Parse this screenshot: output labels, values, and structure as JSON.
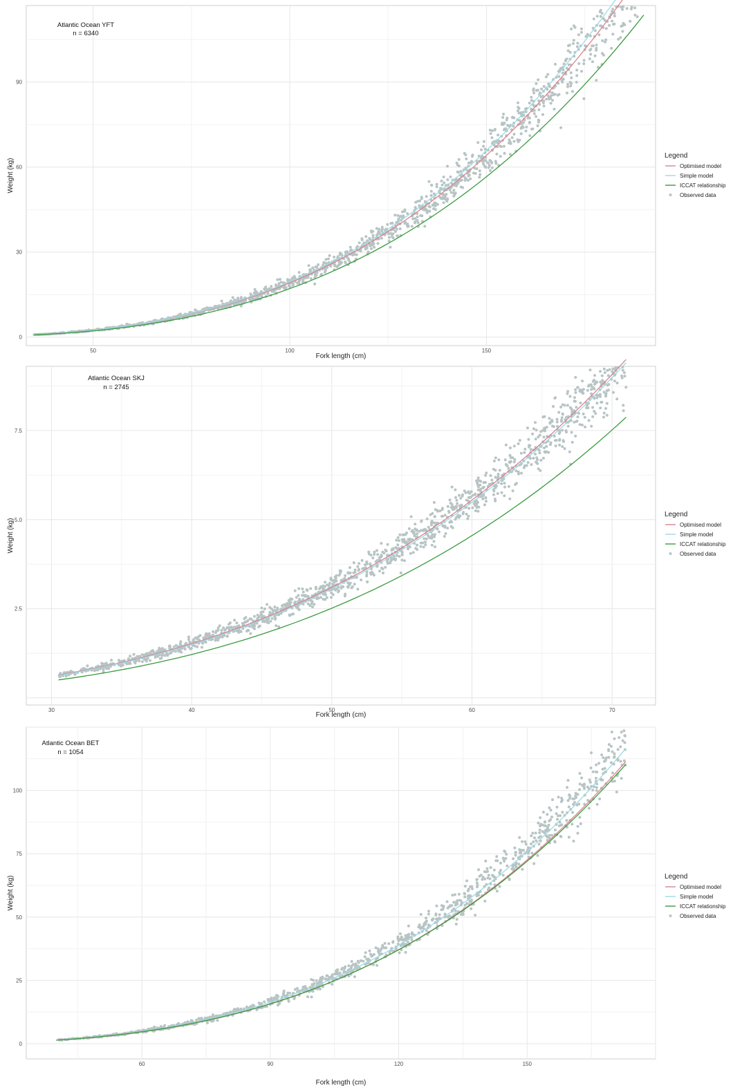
{
  "chart_data": [
    {
      "type": "scatter",
      "title": "Atlantic Ocean YFT",
      "subtitle": "n = 6340",
      "xlabel": "Fork length (cm)",
      "ylabel": "Weight (kg)",
      "xlim": [
        33,
        193
      ],
      "ylim": [
        -3,
        117
      ],
      "xticks": [
        50,
        100,
        150
      ],
      "yticks": [
        0,
        30,
        60,
        90
      ],
      "grid": true,
      "legend_position": "right",
      "legend_title": "Legend",
      "n": 6340,
      "x_range": [
        35,
        190
      ],
      "series": [
        {
          "name": "Optimised model",
          "kind": "line",
          "color": "#d9848f",
          "a": 2.1e-05,
          "b": 2.98
        },
        {
          "name": "Simple model",
          "kind": "line",
          "color": "#9fd9e4",
          "a": 2e-05,
          "b": 2.995
        },
        {
          "name": "ICCAT relationship",
          "kind": "line",
          "color": "#3a9a3f",
          "a": 2.154e-05,
          "b": 2.95
        },
        {
          "name": "Observed data",
          "kind": "points",
          "color": "#b8c4c4",
          "a": 2.05e-05,
          "b": 2.985
        }
      ]
    },
    {
      "type": "scatter",
      "title": "Atlantic Ocean SKJ",
      "subtitle": "n = 2745",
      "xlabel": "Fork length (cm)",
      "ylabel": "Weight (kg)",
      "xlim": [
        28.2,
        73.1
      ],
      "ylim": [
        -0.2,
        9.3
      ],
      "xticks": [
        30,
        40,
        50,
        60,
        70
      ],
      "yticks": [
        2.5,
        5.0,
        7.5
      ],
      "grid": true,
      "legend_position": "right",
      "legend_title": "Legend",
      "n": 2745,
      "x_range": [
        30.5,
        71
      ],
      "series": [
        {
          "name": "Optimised model",
          "kind": "line",
          "color": "#d9848f",
          "a": 1.18e-05,
          "b": 3.19
        },
        {
          "name": "Simple model",
          "kind": "line",
          "color": "#9fd9e4",
          "a": 1.12e-05,
          "b": 3.2
        },
        {
          "name": "ICCAT relationship",
          "kind": "line",
          "color": "#3a9a3f",
          "a": 7.48e-06,
          "b": 3.253
        },
        {
          "name": "Observed data",
          "kind": "points",
          "color": "#b8c4c4",
          "a": 1.16e-05,
          "b": 3.195
        }
      ]
    },
    {
      "type": "scatter",
      "title": "Atlantic Ocean BET",
      "subtitle": "n = 1054",
      "xlabel": "Fork length (cm)",
      "ylabel": "Weight (kg)",
      "xlim": [
        33,
        180
      ],
      "ylim": [
        -6,
        125
      ],
      "xticks": [
        60,
        90,
        120,
        150
      ],
      "yticks": [
        0,
        25,
        50,
        75,
        100
      ],
      "grid": true,
      "legend_position": "right",
      "legend_title": "Legend",
      "n": 1054,
      "x_range": [
        40,
        173
      ],
      "series": [
        {
          "name": "Optimised model",
          "kind": "line",
          "color": "#d9848f",
          "a": 2.15e-05,
          "b": 3.0
        },
        {
          "name": "Simple model",
          "kind": "line",
          "color": "#9fd9e4",
          "a": 2.25e-05,
          "b": 3.0
        },
        {
          "name": "ICCAT relationship",
          "kind": "line",
          "color": "#3a9a3f",
          "a": 2.396e-05,
          "b": 2.977
        },
        {
          "name": "Observed data",
          "kind": "points",
          "color": "#b8c4c4",
          "a": 2.28e-05,
          "b": 3.0
        }
      ]
    }
  ]
}
